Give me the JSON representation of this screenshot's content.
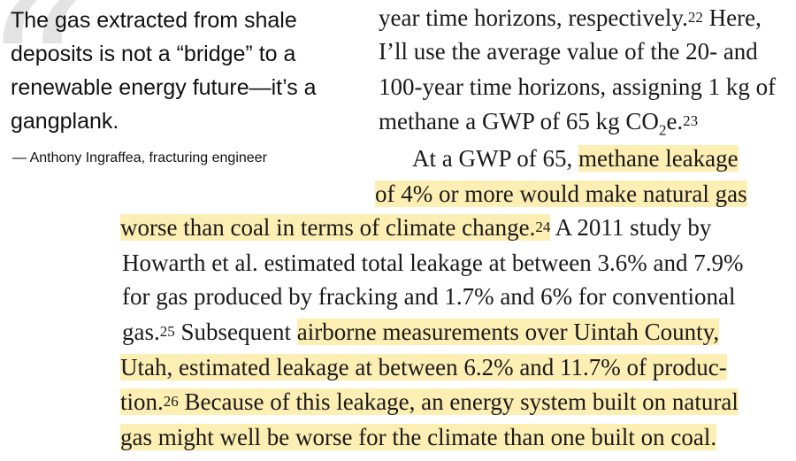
{
  "quote": {
    "text": "The gas extracted from shale deposits is not a “bridge” to a renewable energy future—it’s a gangplank.",
    "attribution": "— Anthony Ingraffea, fracturing engineer"
  },
  "body": {
    "l1a": "year time horizons, respectively.",
    "fn22": "22",
    "l1b": " Here,",
    "l2": "I’ll use the average value of the 20- and",
    "l3": "100-year time horizons, assigning 1 kg of",
    "l4a": "methane a GWP of 65 kg CO",
    "l4sub": "2",
    "l4b": "e.",
    "fn23": "23",
    "l5a": "At a GWP of 65, ",
    "l5hl": "methane leakage",
    "l6hl": "of 4% or more would make natural gas",
    "l7hl": "worse than coal in terms of climate change.",
    "fn24": "24",
    "l7b": " A 2011 study by",
    "l8": "Howarth et al. estimated total leakage at between 3.6% and 7.9%",
    "l9": "for gas produced by fracking and 1.7% and 6% for conventional",
    "l10a": "gas.",
    "fn25": "25",
    "l10b": " Subsequent ",
    "l10hl": "airborne measurements over Uintah County,",
    "l11hl": "Utah, estimated leakage at between 6.2% and 11.7% of produc-",
    "l12hl": "tion.",
    "fn26": "26",
    "l12hl2": " Because of this leakage, an energy system built on natural",
    "l13hl": "gas might well be worse for the climate than one built on coal."
  },
  "colors": {
    "highlight": "#fdeeb3",
    "quote_mark": "#e3e3e3",
    "text": "#1a1a1a"
  }
}
